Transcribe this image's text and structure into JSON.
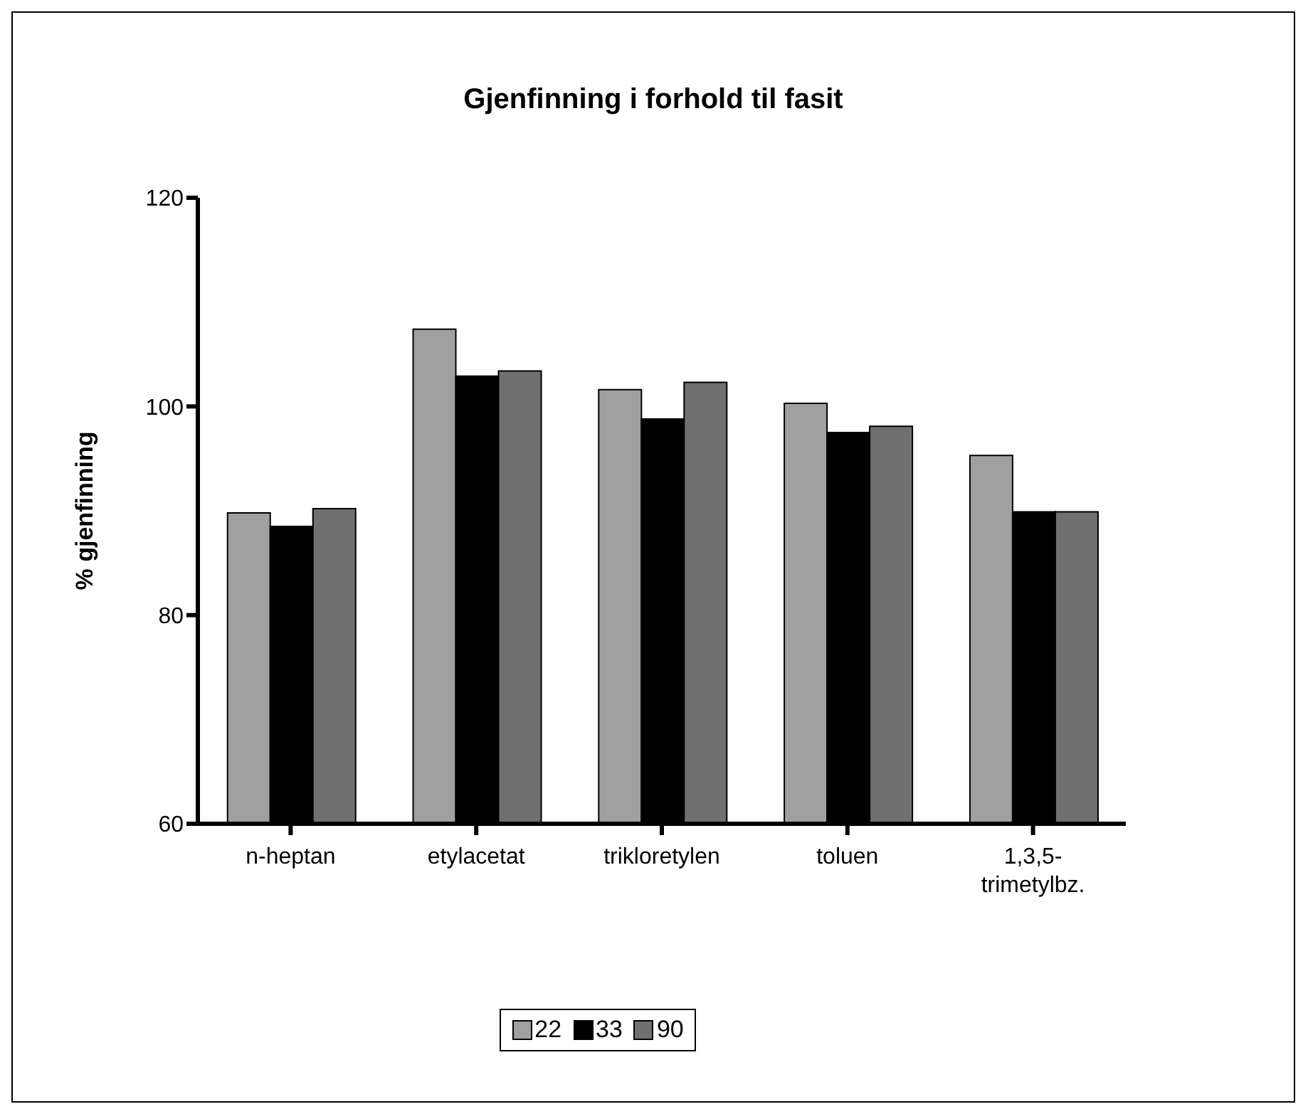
{
  "chart_data": {
    "type": "bar",
    "title": "Gjenfinning i forhold til fasit",
    "ylabel": "% gjenfinning",
    "categories": [
      "n-heptan",
      "etylacetat",
      "trikloretylen",
      "toluen",
      "1,3,5-trimetylbz."
    ],
    "series": [
      {
        "name": "22",
        "color": "#a0a0a0",
        "values": [
          89.8,
          107.4,
          101.6,
          100.3,
          95.3
        ]
      },
      {
        "name": "33",
        "color": "#000000",
        "values": [
          88.5,
          102.9,
          98.8,
          97.5,
          89.9
        ]
      },
      {
        "name": "90",
        "color": "#707070",
        "values": [
          90.2,
          103.4,
          102.3,
          98.1,
          89.9
        ]
      }
    ],
    "ylim": [
      60,
      120
    ],
    "yticks": [
      60,
      80,
      100,
      120
    ],
    "grid": false,
    "legend": "bottom"
  }
}
